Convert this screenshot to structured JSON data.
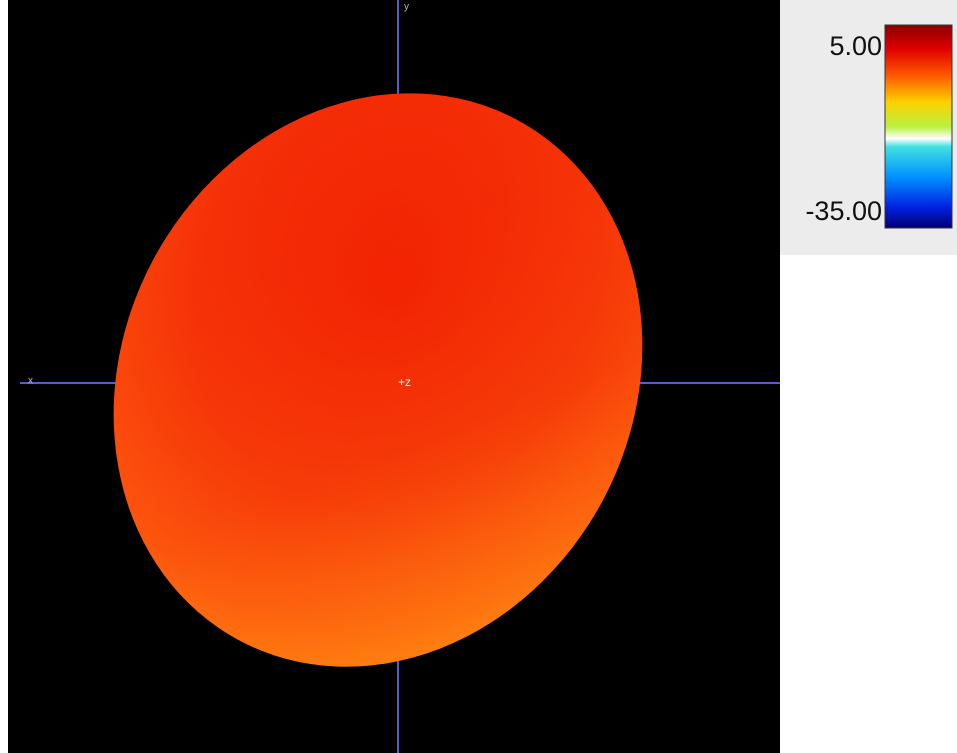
{
  "viewport": {
    "axis_labels": {
      "top": "y",
      "left": "x",
      "center": "+z"
    }
  },
  "colorbar": {
    "max_label": "5.00",
    "min_label": "-35.00"
  }
}
